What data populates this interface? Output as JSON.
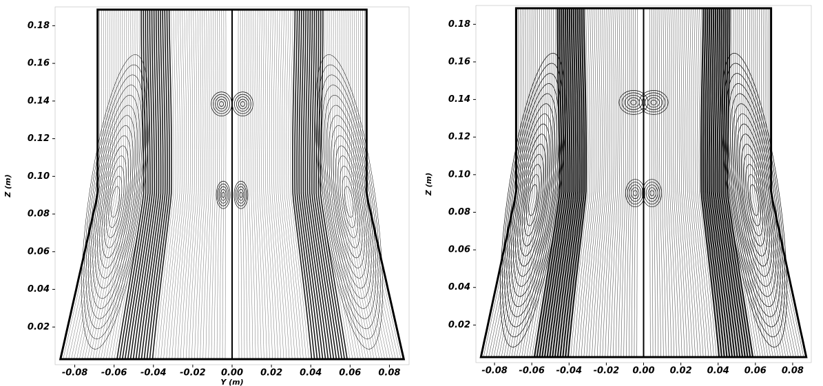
{
  "chart_data": [
    {
      "type": "streamline",
      "ylabel": "Z (m)",
      "xlabel": "Y (m)",
      "xlim": [
        -0.09,
        0.09
      ],
      "ylim": [
        0,
        0.19
      ],
      "xticks": [
        -0.08,
        -0.06,
        -0.04,
        -0.02,
        {
          "value": 0,
          "label": "0.00"
        },
        0.02,
        0.04,
        0.06,
        0.08
      ],
      "yticks": [
        0.02,
        0.04,
        0.06,
        0.08,
        {
          "value": 0.1,
          "label": "0.10"
        },
        0.12,
        0.14,
        0.16,
        0.18
      ],
      "color": "#000000"
    },
    {
      "type": "streamline",
      "ylabel": "Z (m)",
      "xlim": [
        -0.09,
        0.09
      ],
      "ylim": [
        0,
        0.19
      ],
      "xticks": [
        -0.08,
        -0.06,
        -0.04,
        -0.02,
        {
          "value": 0,
          "label": "0.00"
        },
        0.02,
        0.04,
        0.06,
        0.08
      ],
      "yticks": [
        0.02,
        0.04,
        0.06,
        0.08,
        {
          "value": 0.1,
          "label": "0.10"
        },
        0.12,
        0.14,
        0.16,
        0.18
      ],
      "color": "#000000"
    }
  ]
}
